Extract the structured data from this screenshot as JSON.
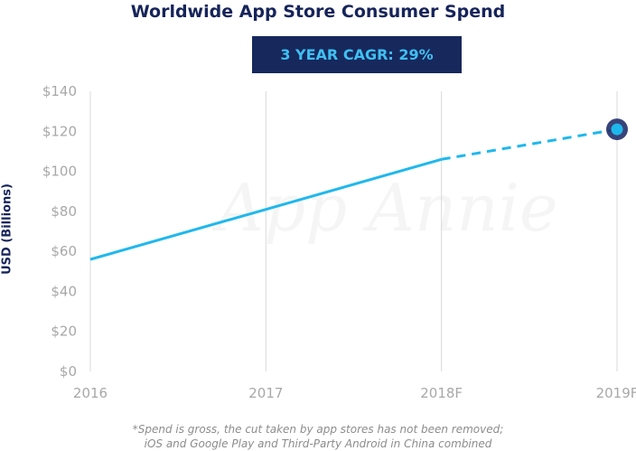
{
  "chart_data": {
    "type": "line",
    "title": "Worldwide App Store Consumer Spend",
    "badge": "3 YEAR CAGR: 29%",
    "ylabel": "USD (Billions)",
    "categories": [
      "2016",
      "2017",
      "2018F",
      "2019F"
    ],
    "series": [
      {
        "values": [
          56,
          81,
          106,
          121
        ]
      }
    ],
    "forecast_start_index": 2,
    "y_ticks": [
      "$0",
      "$20",
      "$40",
      "$60",
      "$80",
      "$100",
      "$120",
      "$140"
    ],
    "ylim": [
      0,
      140
    ],
    "grid": "vertical",
    "watermark": "App Annie",
    "footnote_lines": [
      "*Spend is gross, the cut taken by app stores has not been removed;",
      "iOS and Google Play and Third-Party Android in China combined"
    ],
    "colors": {
      "line": "#1fb8ec",
      "title": "#16245a",
      "badge_bg": "#17285d",
      "badge_text": "#3fc0f2",
      "marker_ring": "#22306a"
    }
  }
}
